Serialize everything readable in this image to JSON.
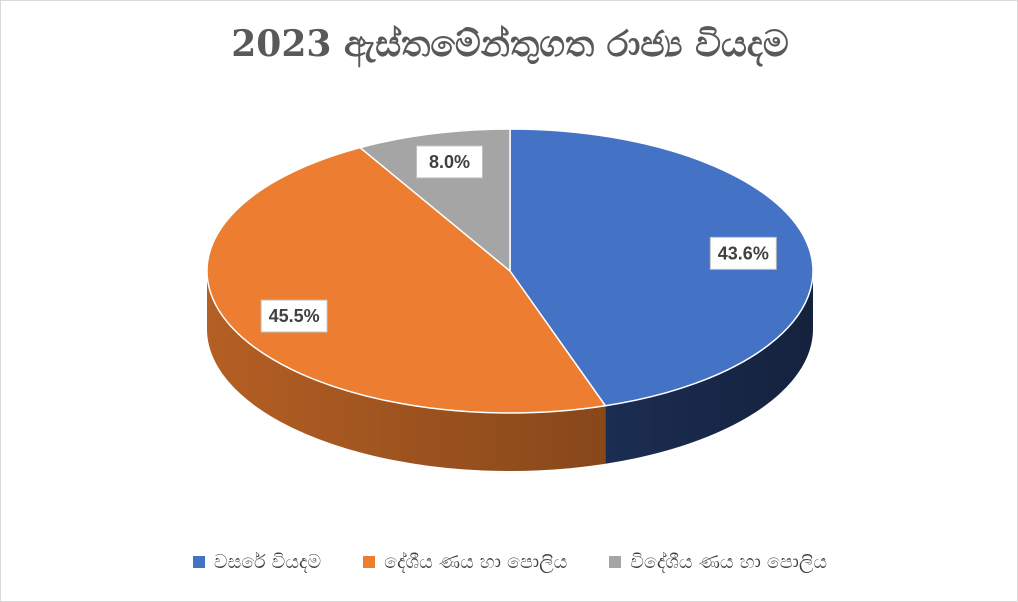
{
  "chart_data": {
    "type": "pie",
    "title": "2023 ඇස්තමේන්තුගත රාජ්‍ය වියදම",
    "categories": [
      "වසරේ වියදම",
      "දේශීය ණය හා පොලිය",
      "විදේශීය ණය හා පොලිය"
    ],
    "values": [
      43.6,
      45.5,
      8.0
    ],
    "labels": [
      "43.6%",
      "45.5%",
      "8.0%"
    ],
    "colors": [
      "#4472C4",
      "#ED7D31",
      "#A5A5A5"
    ],
    "side_colors": [
      "#1B2D52",
      "#B45F23",
      "#7F7F7F"
    ],
    "legend_position": "bottom",
    "style": "3d-pie"
  }
}
